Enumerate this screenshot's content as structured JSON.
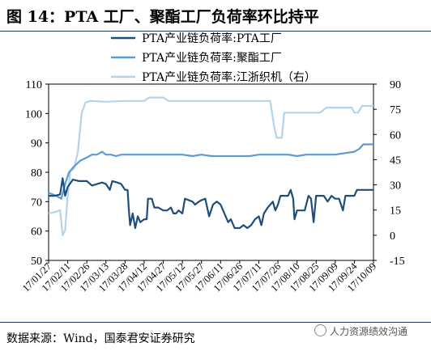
{
  "header": {
    "title": "图 14：PTA 工厂、聚酯工厂负荷率环比持平"
  },
  "footer": {
    "source": "数据来源：Wind，国泰君安证券研究",
    "watermark": "人力资源绩效沟通"
  },
  "chart_data": {
    "type": "line",
    "title": "",
    "colors": {
      "pta": "#1f4e79",
      "polyester": "#5b9bd5",
      "jiangzhe": "#b4d3ec"
    },
    "x_tick_labels": [
      "17/01/27",
      "17/02/11",
      "17/02/26",
      "17/03/13",
      "17/03/28",
      "17/04/12",
      "17/04/27",
      "17/05/12",
      "17/05/27",
      "17/06/11",
      "17/06/26",
      "17/07/11",
      "17/07/26",
      "17/08/10",
      "17/08/25",
      "17/09/09",
      "17/09/24",
      "17/10/09"
    ],
    "x_range": [
      "2017-01-27",
      "2017-10-09"
    ],
    "y_left": {
      "range": [
        50,
        110
      ],
      "ticks": [
        "50",
        "60",
        "70",
        "80",
        "90",
        "100",
        "110"
      ]
    },
    "y_right": {
      "range": [
        -15,
        90
      ],
      "ticks": [
        "-15",
        "0",
        "15",
        "30",
        "45",
        "60",
        "75",
        "90"
      ]
    },
    "legend": {
      "position": "top-center"
    },
    "series": [
      {
        "name": "PTA产业链负荷率:PTA工厂",
        "axis": "left",
        "color_key": "pta",
        "points": [
          [
            "2017-01-27",
            72
          ],
          [
            "2017-02-01",
            72
          ],
          [
            "2017-02-05",
            72.5
          ],
          [
            "2017-02-07",
            78
          ],
          [
            "2017-02-09",
            72
          ],
          [
            "2017-02-11",
            75
          ],
          [
            "2017-02-15",
            77.5
          ],
          [
            "2017-02-20",
            77
          ],
          [
            "2017-02-26",
            77
          ],
          [
            "2017-03-02",
            75.5
          ],
          [
            "2017-03-06",
            76
          ],
          [
            "2017-03-10",
            76.5
          ],
          [
            "2017-03-13",
            76
          ],
          [
            "2017-03-16",
            74
          ],
          [
            "2017-03-18",
            77
          ],
          [
            "2017-03-22",
            76.5
          ],
          [
            "2017-03-25",
            76
          ],
          [
            "2017-03-28",
            74
          ],
          [
            "2017-03-30",
            74
          ],
          [
            "2017-03-31",
            67
          ],
          [
            "2017-04-01",
            62
          ],
          [
            "2017-04-03",
            66
          ],
          [
            "2017-04-05",
            61
          ],
          [
            "2017-04-07",
            65
          ],
          [
            "2017-04-09",
            63
          ],
          [
            "2017-04-12",
            64
          ],
          [
            "2017-04-14",
            64
          ],
          [
            "2017-04-15",
            71
          ],
          [
            "2017-04-18",
            71
          ],
          [
            "2017-04-20",
            68
          ],
          [
            "2017-04-23",
            68
          ],
          [
            "2017-04-27",
            67
          ],
          [
            "2017-04-30",
            67
          ],
          [
            "2017-05-03",
            68
          ],
          [
            "2017-05-05",
            66
          ],
          [
            "2017-05-07",
            66
          ],
          [
            "2017-05-09",
            67
          ],
          [
            "2017-05-12",
            66
          ],
          [
            "2017-05-14",
            71
          ],
          [
            "2017-05-17",
            70.5
          ],
          [
            "2017-05-20",
            70
          ],
          [
            "2017-05-22",
            69
          ],
          [
            "2017-05-25",
            70
          ],
          [
            "2017-05-27",
            70.5
          ],
          [
            "2017-05-30",
            71
          ],
          [
            "2017-06-02",
            65
          ],
          [
            "2017-06-05",
            69
          ],
          [
            "2017-06-08",
            70
          ],
          [
            "2017-06-11",
            69
          ],
          [
            "2017-06-14",
            66
          ],
          [
            "2017-06-17",
            63
          ],
          [
            "2017-06-19",
            64
          ],
          [
            "2017-06-22",
            61
          ],
          [
            "2017-06-26",
            61
          ],
          [
            "2017-06-29",
            62
          ],
          [
            "2017-07-02",
            61
          ],
          [
            "2017-07-05",
            62
          ],
          [
            "2017-07-08",
            64
          ],
          [
            "2017-07-11",
            65
          ],
          [
            "2017-07-13",
            62
          ],
          [
            "2017-07-15",
            66
          ],
          [
            "2017-07-18",
            68
          ],
          [
            "2017-07-20",
            69
          ],
          [
            "2017-07-22",
            70
          ],
          [
            "2017-07-24",
            67
          ],
          [
            "2017-07-26",
            69
          ],
          [
            "2017-07-28",
            72
          ],
          [
            "2017-07-31",
            72
          ],
          [
            "2017-08-03",
            72
          ],
          [
            "2017-08-05",
            74
          ],
          [
            "2017-08-07",
            71
          ],
          [
            "2017-08-08",
            64
          ],
          [
            "2017-08-10",
            67
          ],
          [
            "2017-08-13",
            67
          ],
          [
            "2017-08-16",
            67
          ],
          [
            "2017-08-19",
            72
          ],
          [
            "2017-08-21",
            71
          ],
          [
            "2017-08-23",
            63
          ],
          [
            "2017-08-25",
            72
          ],
          [
            "2017-08-28",
            72
          ],
          [
            "2017-08-31",
            72
          ],
          [
            "2017-09-03",
            70
          ],
          [
            "2017-09-06",
            72
          ],
          [
            "2017-09-09",
            71
          ],
          [
            "2017-09-12",
            71
          ],
          [
            "2017-09-15",
            67
          ],
          [
            "2017-09-17",
            72
          ],
          [
            "2017-09-20",
            72
          ],
          [
            "2017-09-24",
            72
          ],
          [
            "2017-09-26",
            74
          ],
          [
            "2017-09-29",
            74
          ],
          [
            "2017-10-02",
            74
          ],
          [
            "2017-10-05",
            74
          ],
          [
            "2017-10-09",
            74
          ]
        ]
      },
      {
        "name": "PTA产业链负荷率:聚酯工厂",
        "axis": "left",
        "color_key": "polyester",
        "points": [
          [
            "2017-01-27",
            73
          ],
          [
            "2017-02-02",
            72
          ],
          [
            "2017-02-06",
            71
          ],
          [
            "2017-02-09",
            76
          ],
          [
            "2017-02-12",
            80
          ],
          [
            "2017-02-16",
            82
          ],
          [
            "2017-02-21",
            84
          ],
          [
            "2017-02-26",
            85
          ],
          [
            "2017-03-02",
            86
          ],
          [
            "2017-03-06",
            86
          ],
          [
            "2017-03-10",
            87
          ],
          [
            "2017-03-13",
            86
          ],
          [
            "2017-03-17",
            86
          ],
          [
            "2017-03-21",
            85.5
          ],
          [
            "2017-03-25",
            86
          ],
          [
            "2017-03-28",
            86
          ],
          [
            "2017-04-04",
            86
          ],
          [
            "2017-04-12",
            86
          ],
          [
            "2017-04-20",
            86
          ],
          [
            "2017-04-27",
            86
          ],
          [
            "2017-05-05",
            86
          ],
          [
            "2017-05-12",
            86
          ],
          [
            "2017-05-20",
            85.5
          ],
          [
            "2017-05-27",
            86
          ],
          [
            "2017-06-04",
            85.5
          ],
          [
            "2017-06-11",
            85.5
          ],
          [
            "2017-06-18",
            85.5
          ],
          [
            "2017-06-26",
            85.5
          ],
          [
            "2017-07-04",
            85.5
          ],
          [
            "2017-07-11",
            86
          ],
          [
            "2017-07-18",
            86
          ],
          [
            "2017-07-26",
            86
          ],
          [
            "2017-08-03",
            86
          ],
          [
            "2017-08-10",
            85.5
          ],
          [
            "2017-08-17",
            86
          ],
          [
            "2017-08-25",
            86
          ],
          [
            "2017-09-02",
            86
          ],
          [
            "2017-09-09",
            86
          ],
          [
            "2017-09-16",
            86.5
          ],
          [
            "2017-09-24",
            87
          ],
          [
            "2017-09-28",
            88
          ],
          [
            "2017-10-01",
            89.5
          ],
          [
            "2017-10-05",
            89.5
          ],
          [
            "2017-10-09",
            89.5
          ]
        ]
      },
      {
        "name": "PTA产业链负荷率:江浙织机（右）",
        "axis": "right",
        "color_key": "jiangzhe",
        "points": [
          [
            "2017-01-27",
            13
          ],
          [
            "2017-02-02",
            14
          ],
          [
            "2017-02-05",
            15
          ],
          [
            "2017-02-07",
            0
          ],
          [
            "2017-02-09",
            3
          ],
          [
            "2017-02-11",
            24
          ],
          [
            "2017-02-13",
            38
          ],
          [
            "2017-02-16",
            40
          ],
          [
            "2017-02-19",
            50
          ],
          [
            "2017-02-22",
            73
          ],
          [
            "2017-02-25",
            79
          ],
          [
            "2017-03-01",
            80
          ],
          [
            "2017-03-13",
            79.5
          ],
          [
            "2017-03-28",
            80
          ],
          [
            "2017-04-12",
            80
          ],
          [
            "2017-04-16",
            82
          ],
          [
            "2017-04-27",
            82
          ],
          [
            "2017-05-01",
            80
          ],
          [
            "2017-05-12",
            80
          ],
          [
            "2017-05-27",
            80
          ],
          [
            "2017-06-11",
            80
          ],
          [
            "2017-06-26",
            80
          ],
          [
            "2017-07-11",
            80
          ],
          [
            "2017-07-20",
            80
          ],
          [
            "2017-07-23",
            65
          ],
          [
            "2017-07-25",
            58
          ],
          [
            "2017-07-29",
            58
          ],
          [
            "2017-07-31",
            73
          ],
          [
            "2017-08-10",
            73
          ],
          [
            "2017-08-25",
            73
          ],
          [
            "2017-08-28",
            73
          ],
          [
            "2017-09-02",
            76
          ],
          [
            "2017-09-09",
            76
          ],
          [
            "2017-09-16",
            76
          ],
          [
            "2017-09-22",
            76
          ],
          [
            "2017-09-24",
            73
          ],
          [
            "2017-09-27",
            73
          ],
          [
            "2017-09-30",
            77
          ],
          [
            "2017-10-09",
            77
          ]
        ]
      }
    ]
  }
}
